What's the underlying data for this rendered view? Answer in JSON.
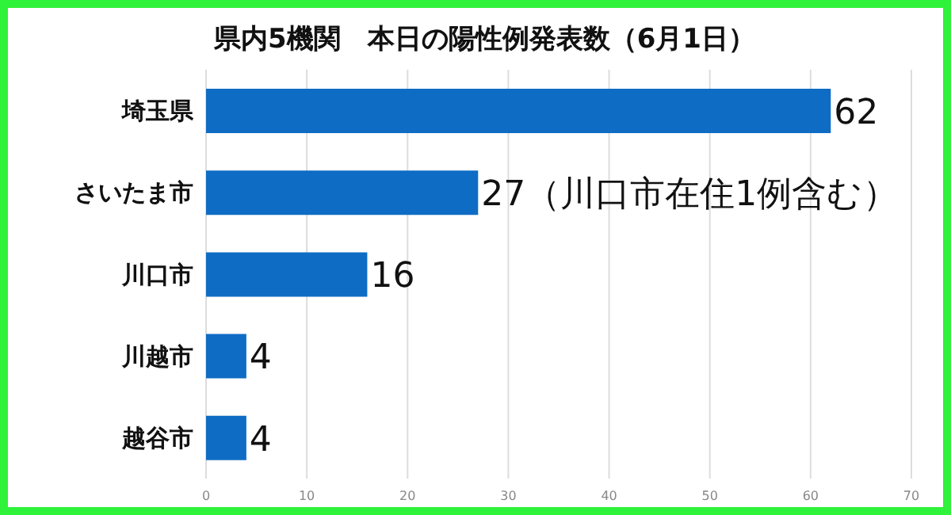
{
  "chart_data": {
    "type": "bar",
    "orientation": "horizontal",
    "title": "県内5機関　本日の陽性例発表数（6月1日）",
    "categories": [
      "埼玉県",
      "さいたま市",
      "川口市",
      "川越市",
      "越谷市"
    ],
    "values": [
      62,
      27,
      16,
      4,
      4
    ],
    "value_labels": [
      "62",
      "27（川口市在住1例含む）",
      "16",
      "4",
      "4"
    ],
    "color": "#0f6cc4",
    "xlim": [
      0,
      70
    ],
    "xticks": [
      0,
      10,
      20,
      30,
      40,
      50,
      60,
      70
    ],
    "grid": "x"
  }
}
